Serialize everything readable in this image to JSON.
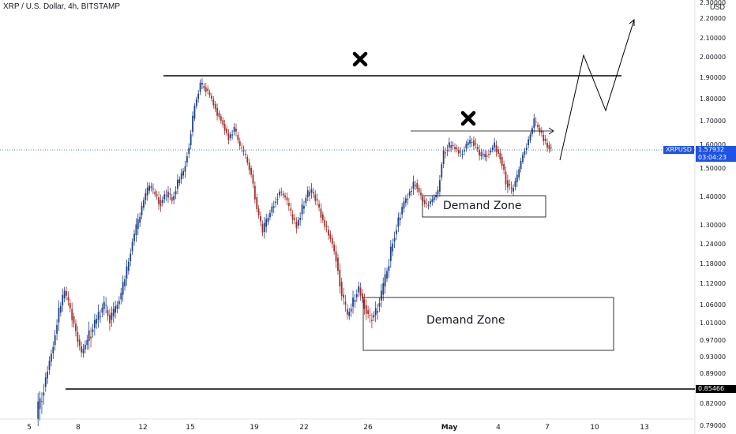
{
  "header": {
    "title": "XRP / U.S. Dollar, 4h, BITSTAMP",
    "currency": "USD"
  },
  "price_axis": {
    "ticks": [
      "2.30000",
      "2.20000",
      "2.10000",
      "2.00000",
      "1.90000",
      "1.80000",
      "1.70000",
      "1.60000",
      "1.50000",
      "1.40000",
      "1.30000",
      "1.24000",
      "1.18000",
      "1.12000",
      "1.06000",
      "1.01000",
      "0.97000",
      "0.93000",
      "0.89000",
      "0.82000",
      "0.79000"
    ],
    "last_price": {
      "symbol": "XRPUSD",
      "price": "1.57932",
      "countdown": "03:04:23",
      "color": "#1e53e5"
    },
    "support_label": "0.85466"
  },
  "time_axis": {
    "ticks": [
      {
        "label": "5",
        "bold": false
      },
      {
        "label": "8",
        "bold": false
      },
      {
        "label": "12",
        "bold": false
      },
      {
        "label": "15",
        "bold": false
      },
      {
        "label": "19",
        "bold": false
      },
      {
        "label": "22",
        "bold": false
      },
      {
        "label": "26",
        "bold": false
      },
      {
        "label": "May",
        "bold": true
      },
      {
        "label": "4",
        "bold": false
      },
      {
        "label": "7",
        "bold": false
      },
      {
        "label": "10",
        "bold": false
      },
      {
        "label": "13",
        "bold": false
      }
    ]
  },
  "annotations": {
    "demand_zone_upper": "Demand Zone",
    "demand_zone_lower": "Demand Zone",
    "cross_marks": [
      "x-mark-left",
      "x-mark-right"
    ],
    "colors": {
      "up": "#1e3f8c",
      "down": "#a0302c",
      "line": "#000000",
      "projection": "#000000"
    }
  },
  "chart_data": {
    "type": "candlestick",
    "symbol": "XRPUSD",
    "interval": "4h",
    "exchange": "BITSTAMP",
    "date_range": "Apr 5 – May 13",
    "ylim": [
      0.79,
      2.3
    ],
    "closes": [
      0.8,
      0.84,
      0.9,
      0.96,
      1.04,
      1.1,
      1.05,
      0.99,
      0.94,
      0.97,
      1.0,
      1.03,
      1.06,
      1.02,
      1.05,
      1.09,
      1.16,
      1.25,
      1.31,
      1.39,
      1.44,
      1.41,
      1.38,
      1.42,
      1.39,
      1.45,
      1.49,
      1.6,
      1.77,
      1.87,
      1.85,
      1.8,
      1.74,
      1.69,
      1.63,
      1.67,
      1.59,
      1.55,
      1.48,
      1.36,
      1.28,
      1.33,
      1.38,
      1.42,
      1.4,
      1.34,
      1.3,
      1.36,
      1.42,
      1.41,
      1.36,
      1.3,
      1.26,
      1.2,
      1.09,
      1.03,
      1.07,
      1.11,
      1.06,
      1.02,
      1.04,
      1.09,
      1.16,
      1.25,
      1.32,
      1.38,
      1.42,
      1.45,
      1.4,
      1.37,
      1.39,
      1.42,
      1.57,
      1.6,
      1.59,
      1.56,
      1.6,
      1.62,
      1.58,
      1.55,
      1.57,
      1.6,
      1.55,
      1.46,
      1.42,
      1.47,
      1.56,
      1.62,
      1.7,
      1.66,
      1.61,
      1.58
    ],
    "levels": {
      "resistance": 1.91,
      "support": 0.85466,
      "local_resistance": 1.66
    },
    "zones": [
      {
        "label": "Demand Zone",
        "top": 1.405,
        "bottom": 1.335
      },
      {
        "label": "Demand Zone",
        "top": 1.08,
        "bottom": 0.952
      }
    ],
    "projection": [
      1.55,
      2.01,
      1.76,
      2.21
    ]
  }
}
